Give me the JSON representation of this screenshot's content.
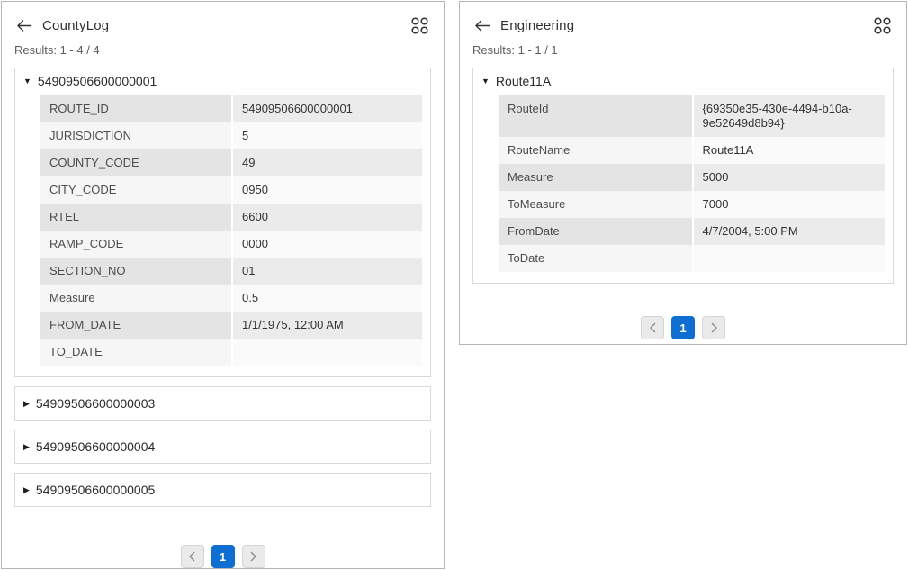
{
  "colors": {
    "accent_blue": "#0e6ed2",
    "panel_border": "#b5b5b5",
    "row_shaded_label": "#e4e4e4",
    "row_shaded_value": "#ebebeb"
  },
  "panels": [
    {
      "title": "CountyLog",
      "results_label": "Results: 1 - 4 / 4",
      "expanded": {
        "title": "54909506600000001",
        "fields": [
          {
            "label": "ROUTE_ID",
            "value": "54909506600000001"
          },
          {
            "label": "JURISDICTION",
            "value": "5"
          },
          {
            "label": "COUNTY_CODE",
            "value": "49"
          },
          {
            "label": "CITY_CODE",
            "value": "0950"
          },
          {
            "label": "RTEL",
            "value": "6600"
          },
          {
            "label": "RAMP_CODE",
            "value": "0000"
          },
          {
            "label": "SECTION_NO",
            "value": "01"
          },
          {
            "label": "Measure",
            "value": "0.5"
          },
          {
            "label": "FROM_DATE",
            "value": "1/1/1975, 12:00 AM"
          },
          {
            "label": "TO_DATE",
            "value": ""
          }
        ]
      },
      "collapsed": [
        "54909506600000003",
        "54909506600000004",
        "54909506600000005"
      ],
      "pagination": {
        "current_page": "1"
      }
    },
    {
      "title": "Engineering",
      "results_label": "Results: 1 - 1 / 1",
      "expanded": {
        "title": "Route11A",
        "fields": [
          {
            "label": "RouteId",
            "value": "{69350e35-430e-4494-b10a-9e52649d8b94}"
          },
          {
            "label": "RouteName",
            "value": "Route11A"
          },
          {
            "label": "Measure",
            "value": "5000"
          },
          {
            "label": "ToMeasure",
            "value": "7000"
          },
          {
            "label": "FromDate",
            "value": "4/7/2004, 5:00 PM"
          },
          {
            "label": "ToDate",
            "value": ""
          }
        ]
      },
      "collapsed": [],
      "pagination": {
        "current_page": "1"
      }
    }
  ],
  "icon_names": {
    "back": "back-arrow-icon",
    "grid": "grid-icon",
    "caret_expanded": "caret-down-icon",
    "caret_collapsed": "caret-right-icon",
    "prev": "chevron-left-icon",
    "next": "chevron-right-icon"
  },
  "glyphs": {
    "caret_down": "▼",
    "caret_right": "▶"
  }
}
